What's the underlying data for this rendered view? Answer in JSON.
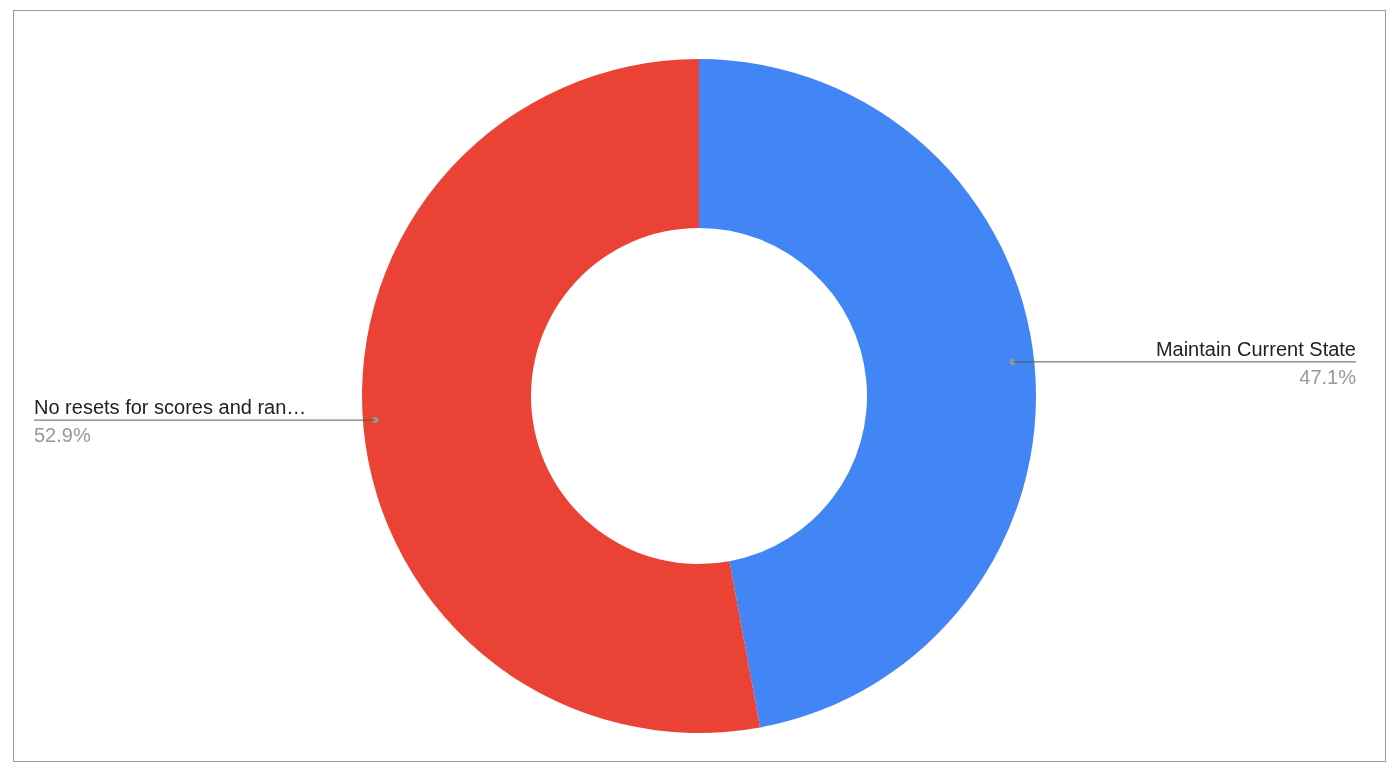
{
  "chart_data": {
    "type": "donut",
    "categories": [
      "Maintain Current State",
      "No resets for scores and ran…"
    ],
    "values": [
      47.1,
      52.9
    ],
    "colors": [
      "#4285f4",
      "#ea4335"
    ],
    "value_labels": [
      "47.1%",
      "52.9%"
    ]
  }
}
